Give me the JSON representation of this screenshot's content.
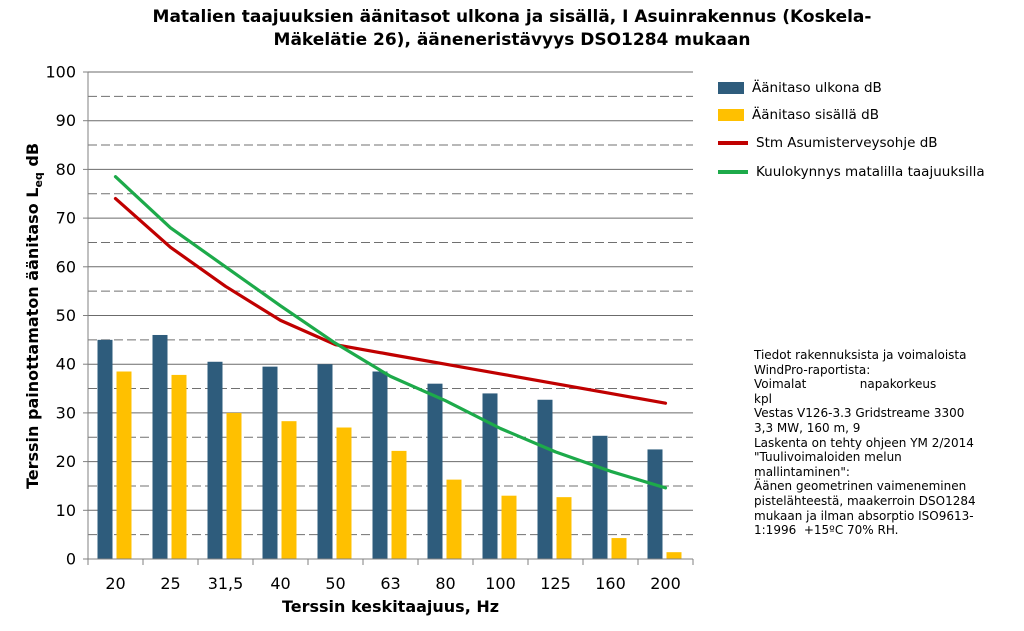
{
  "chart_data": {
    "type": "bar",
    "title_line1": "Matalien taajuuksien äänitasot ulkona ja sisällä, I Asuinrakennus (Koskela-",
    "title_line2": "Mäkelätie 26), ääneneristävyys DSO1284 mukaan",
    "xlabel": "Terssin keskitaajuus, Hz",
    "ylabel_main": "Terssin painottamaton äänitaso L",
    "ylabel_sub": "eq",
    "ylabel_unit": " dB",
    "ylim": [
      0,
      100
    ],
    "yticks": [
      0,
      10,
      20,
      30,
      40,
      50,
      60,
      70,
      80,
      90,
      100
    ],
    "grid": "dashed",
    "legend_position": "right",
    "categories": [
      "20",
      "25",
      "31,5",
      "40",
      "50",
      "63",
      "80",
      "100",
      "125",
      "160",
      "200"
    ],
    "series": [
      {
        "name": "Äänitaso ulkona dB",
        "kind": "bar",
        "color": "#2e5c7c",
        "values": [
          45,
          46,
          40.5,
          39.5,
          40,
          38.5,
          36,
          34,
          32.7,
          25.3,
          22.5
        ]
      },
      {
        "name": "Äänitaso sisällä dB",
        "kind": "bar",
        "color": "#ffc000",
        "values": [
          38.5,
          37.8,
          30,
          28.3,
          27,
          22.2,
          16.3,
          13,
          12.7,
          4.3,
          1.4
        ]
      },
      {
        "name": "Stm Asumisterveysohje dB",
        "kind": "line",
        "color": "#c00000",
        "values": [
          74,
          64,
          56,
          49,
          44,
          42,
          40,
          38,
          36,
          34,
          32
        ]
      },
      {
        "name": "Kuulokynnys matalilla taajuuksilla",
        "kind": "line",
        "color": "#1daa4a",
        "values": [
          78.5,
          68,
          60,
          52,
          44.3,
          37.5,
          32.5,
          26.8,
          22,
          18,
          14.6
        ]
      }
    ]
  },
  "notes": {
    "lines": [
      "Tiedot rakennuksista ja voimaloista",
      "WindPro-raportista:",
      "Voimalat              napakorkeus",
      "kpl",
      "Vestas V126-3.3 Gridstreame 3300",
      "3,3 MW, 160 m, 9",
      "Laskenta on tehty ohjeen YM 2/2014",
      "\"Tuulivoimaloiden melun",
      "mallintaminen\":",
      "Äänen geometrinen vaimeneminen",
      "pistelähteestä, maakerroin DSO1284",
      "mukaan ja ilman absorptio ISO9613-",
      "1:1996  +15ºC 70% RH."
    ]
  }
}
